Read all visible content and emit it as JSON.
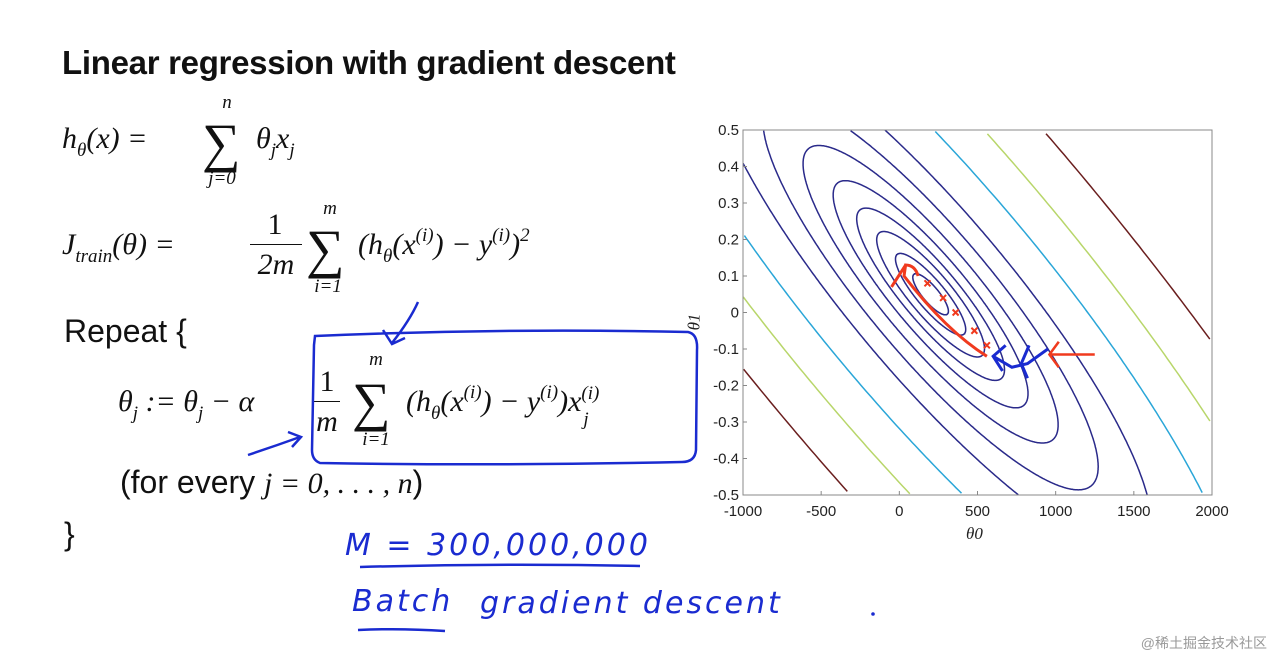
{
  "slide": {
    "title": "Linear regression with gradient descent",
    "hypothesis": {
      "lhs": "h",
      "lhs_sub": "θ",
      "arg": "(x) =",
      "sum_top": "n",
      "sum_bottom": "j=0",
      "body": "θ",
      "body_sub": "j",
      "body2": "x",
      "body2_sub": "j"
    },
    "cost": {
      "lhs": "J",
      "lhs_sub": "train",
      "arg": "(θ) =",
      "frac_num": "1",
      "frac_den": "2m",
      "sum_top": "m",
      "sum_bottom": "i=1",
      "body": "(h",
      "body_sub": "θ",
      "body2": "(x",
      "sup_i": "(i)",
      "body3": ") − y",
      "sup_i2": "(i)",
      "body4": ")",
      "sup_2": "2"
    },
    "repeat_label": "Repeat {",
    "update": {
      "lhs": "θ",
      "lhs_sub": "j",
      "mid": ":= θ",
      "mid_sub": "j",
      "minus_alpha": "− α",
      "frac_num": "1",
      "frac_den": "m",
      "sum_top": "m",
      "sum_bottom": "i=1",
      "body": "(h",
      "body_sub": "θ",
      "body2": "(x",
      "sup_i": "(i)",
      "body3": ") − y",
      "sup_i2": "(i)",
      "body4": ")x",
      "sup_i3": "(i)",
      "sub_j": "j"
    },
    "for_every": "(for every ",
    "for_every_math": "j = 0, . . . , n",
    "for_every_close": ")",
    "close_brace": "}"
  },
  "annotations": {
    "m_value": "M = 300,000,000",
    "batch_label": "Batch",
    "gd_label": "gradient descent",
    "ink_color": "#1a2bd0",
    "path_color": "#f03a1e"
  },
  "chart_data": {
    "type": "contour",
    "xlabel": "θ0",
    "ylabel": "θ1",
    "xlim": [
      -1000,
      2000
    ],
    "ylim": [
      -0.5,
      0.5
    ],
    "xticks": [
      "-1000",
      "-500",
      "0",
      "500",
      "1000",
      "1500",
      "2000"
    ],
    "yticks": [
      "0.5",
      "0.4",
      "0.3",
      "0.2",
      "0.1",
      "0",
      "-0.1",
      "-0.2",
      "-0.3",
      "-0.4",
      "-0.5"
    ],
    "minimum": {
      "x": 200,
      "y": 0.05
    },
    "contour_colors": [
      "#2a2a8a",
      "#2a2a8a",
      "#2a2a8a",
      "#2a2a8a",
      "#2a2a8a",
      "#2a2a8a",
      "#2a2a8a",
      "#2a2a8a",
      "#2aa6d8",
      "#b8d66a",
      "#6a1e1e"
    ],
    "descent_steps": [
      {
        "x": 560,
        "y": -0.09
      },
      {
        "x": 480,
        "y": -0.05
      },
      {
        "x": 360,
        "y": 0.0
      },
      {
        "x": 280,
        "y": 0.04
      },
      {
        "x": 180,
        "y": 0.08
      }
    ]
  },
  "watermark": "@稀土掘金技术社区"
}
